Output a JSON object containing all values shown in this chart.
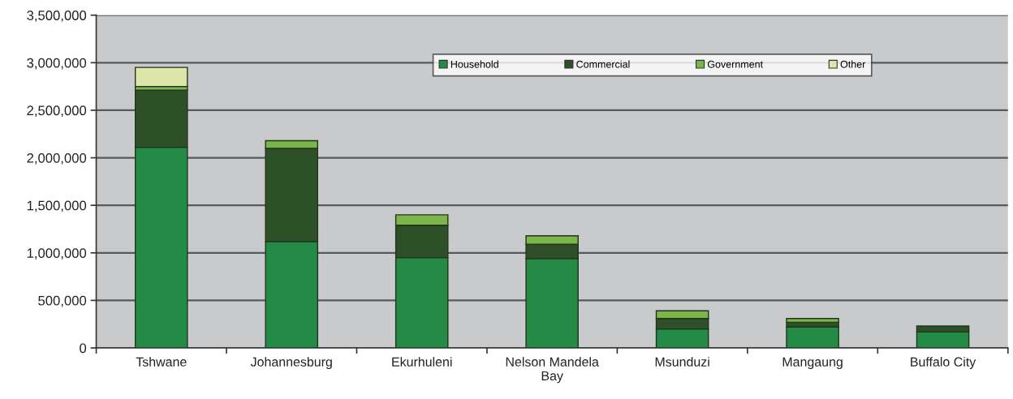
{
  "chart_data": {
    "type": "bar",
    "stacked": true,
    "categories": [
      "Tshwane",
      "Johannesburg",
      "Ekurhuleni",
      "Nelson Mandela\nBay",
      "Msunduzi",
      "Mangaung",
      "Buffalo City"
    ],
    "series": [
      {
        "name": "Household",
        "color": "#238b45",
        "values": [
          2110000,
          1120000,
          950000,
          940000,
          200000,
          220000,
          170000
        ]
      },
      {
        "name": "Commercial",
        "color": "#2e5028",
        "values": [
          600000,
          980000,
          340000,
          150000,
          110000,
          50000,
          60000
        ]
      },
      {
        "name": "Government",
        "color": "#7ab648",
        "values": [
          40000,
          80000,
          110000,
          90000,
          80000,
          40000,
          0
        ]
      },
      {
        "name": "Other",
        "color": "#dde6a8",
        "values": [
          200000,
          0,
          0,
          0,
          0,
          0,
          0
        ]
      }
    ],
    "ylim": [
      0,
      3500000
    ],
    "yticks": [
      {
        "value": 0,
        "label": "0"
      },
      {
        "value": 500000,
        "label": "500,000"
      },
      {
        "value": 1000000,
        "label": "1,000,000"
      },
      {
        "value": 1500000,
        "label": "1,500,000"
      },
      {
        "value": 2000000,
        "label": "2,000,000"
      },
      {
        "value": 2500000,
        "label": "2,500,000"
      },
      {
        "value": 3000000,
        "label": "3,000,000"
      },
      {
        "value": 3500000,
        "label": "3,500,000"
      }
    ],
    "grid": "y",
    "legend": "top"
  }
}
